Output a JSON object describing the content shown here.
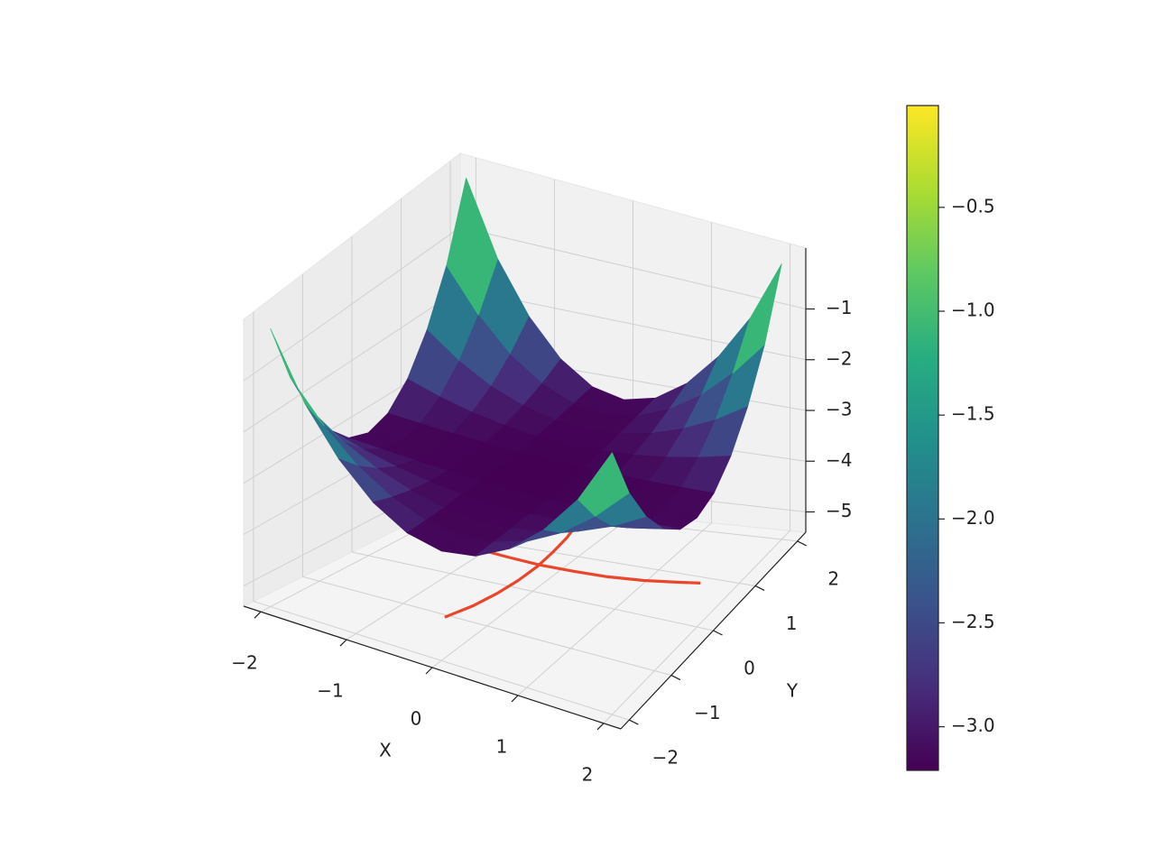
{
  "chart_data": {
    "type": "surface3d",
    "x": [
      -2,
      -1.6,
      -1.2,
      -0.8,
      -0.4,
      0,
      0.4,
      0.8,
      1.2,
      1.6,
      2
    ],
    "y": [
      -2,
      -1.6,
      -1.2,
      -0.8,
      -0.4,
      0,
      0.4,
      0.8,
      1.2,
      1.6,
      2
    ],
    "z": [
      [
        -0.01,
        -1.22,
        -2.08,
        -2.7,
        -3.08,
        -3.21,
        -3.08,
        -2.7,
        -2.08,
        -1.22,
        -0.01
      ],
      [
        -1.22,
        -1.93,
        -2.49,
        -2.88,
        -3.12,
        -3.21,
        -3.12,
        -2.88,
        -2.49,
        -1.93,
        -1.22
      ],
      [
        -2.08,
        -2.49,
        -2.8,
        -3.02,
        -3.16,
        -3.21,
        -3.16,
        -3.02,
        -2.8,
        -2.49,
        -2.08
      ],
      [
        -2.7,
        -2.88,
        -3.02,
        -3.12,
        -3.18,
        -3.21,
        -3.18,
        -3.12,
        -3.02,
        -2.88,
        -2.7
      ],
      [
        -3.08,
        -3.12,
        -3.16,
        -3.18,
        -3.2,
        -3.21,
        -3.2,
        -3.18,
        -3.16,
        -3.12,
        -3.08
      ],
      [
        -3.21,
        -3.21,
        -3.21,
        -3.21,
        -3.21,
        -3.21,
        -3.21,
        -3.21,
        -3.21,
        -3.21,
        -3.21
      ],
      [
        -3.08,
        -3.12,
        -3.16,
        -3.18,
        -3.2,
        -3.21,
        -3.2,
        -3.18,
        -3.16,
        -3.12,
        -3.08
      ],
      [
        -2.7,
        -2.88,
        -3.02,
        -3.12,
        -3.18,
        -3.21,
        -3.18,
        -3.12,
        -3.02,
        -2.88,
        -2.7
      ],
      [
        -2.08,
        -2.49,
        -2.8,
        -3.02,
        -3.16,
        -3.21,
        -3.16,
        -3.02,
        -2.8,
        -2.49,
        -2.08
      ],
      [
        -1.22,
        -1.93,
        -2.49,
        -2.88,
        -3.12,
        -3.21,
        -3.12,
        -2.88,
        -2.49,
        -1.93,
        -1.22
      ],
      [
        -0.01,
        -1.22,
        -2.08,
        -2.7,
        -3.08,
        -3.21,
        -3.08,
        -2.7,
        -2.08,
        -1.22,
        -0.01
      ]
    ],
    "xlim": [
      -2.2,
      2.2
    ],
    "ylim": [
      -2.2,
      2.2
    ],
    "zlim": [
      -5.4,
      0.2
    ],
    "xticks": [
      {
        "value": -2,
        "label": "−2"
      },
      {
        "value": -1,
        "label": "−1"
      },
      0,
      1,
      2
    ],
    "yticks": [
      {
        "value": -2,
        "label": "−2"
      },
      {
        "value": -1,
        "label": "−1"
      },
      0,
      1,
      2
    ],
    "zticks": [
      {
        "value": -5,
        "label": "−5"
      },
      {
        "value": -4,
        "label": "−4"
      },
      {
        "value": -3,
        "label": "−3"
      },
      {
        "value": -2,
        "label": "−2"
      },
      {
        "value": -1,
        "label": "−1"
      }
    ],
    "xlabel": "X",
    "ylabel": "Y",
    "grid": true,
    "colormap": [
      "#440154",
      "#472d7b",
      "#3b528b",
      "#2c728e",
      "#21918c",
      "#28ae80",
      "#5ec962",
      "#addc30",
      "#fde725"
    ],
    "clim": [
      -3.21,
      -0.01
    ],
    "cticks": [
      {
        "value": -3.0,
        "label": "−3.0"
      },
      {
        "value": -2.5,
        "label": "−2.5"
      },
      {
        "value": -2.0,
        "label": "−2.0"
      },
      {
        "value": -1.5,
        "label": "−1.5"
      },
      {
        "value": -1.0,
        "label": "−1.0"
      },
      {
        "value": -0.5,
        "label": "−0.5"
      }
    ],
    "lines": [
      {
        "color": "#e8472c",
        "z": -5,
        "x": [
          -1.6,
          -1.2,
          -0.8,
          -0.4,
          0,
          0.4,
          0.8,
          1.2,
          1.5,
          1.8
        ],
        "y": [
          0.41,
          0.29,
          0.21,
          0.17,
          0.15,
          0.17,
          0.21,
          0.29,
          0.38,
          0.47
        ]
      },
      {
        "color": "#e8472c",
        "z": -5,
        "x": [
          -0.23,
          -0.12,
          -0.05,
          -0.01,
          0,
          -0.03,
          -0.08,
          -0.17,
          -0.32
        ],
        "y": [
          -1.5,
          -1.1,
          -0.7,
          -0.3,
          0.1,
          0.5,
          0.9,
          1.3,
          1.8
        ]
      }
    ]
  }
}
